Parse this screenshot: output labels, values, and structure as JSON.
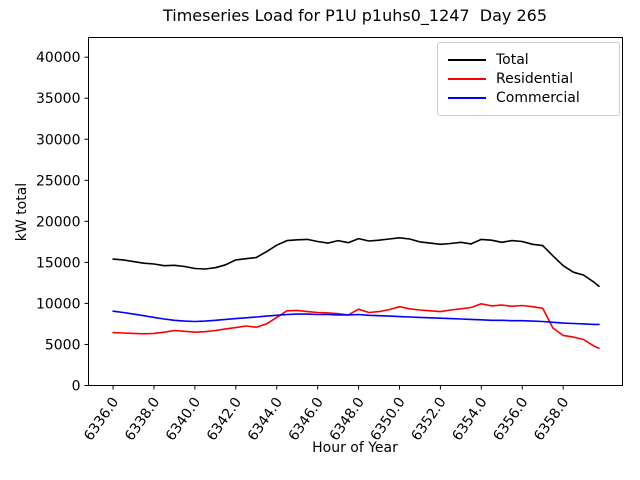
{
  "figure": {
    "title": "Timeseries Load for P1U p1uhs0_1247  Day 265",
    "xlabel": "Hour of Year",
    "ylabel": "kW total"
  },
  "legend": {
    "entries": [
      {
        "label": "Total",
        "color": "#000000"
      },
      {
        "label": "Residential",
        "color": "#ff0000"
      },
      {
        "label": "Commercial",
        "color": "#0000ff"
      }
    ]
  },
  "chart_data": {
    "type": "line",
    "title": "Timeseries Load for P1U p1uhs0_1247  Day 265",
    "xlabel": "Hour of Year",
    "ylabel": "kW total",
    "grid": false,
    "legend_position": "upper right",
    "xlim": [
      6334.8,
      6360.9
    ],
    "ylim": [
      0,
      42400
    ],
    "xticks": {
      "values": [
        6336,
        6338,
        6340,
        6342,
        6344,
        6346,
        6348,
        6350,
        6352,
        6354,
        6356,
        6358
      ],
      "labels": [
        "6336.0",
        "6338.0",
        "6340.0",
        "6342.0",
        "6344.0",
        "6346.0",
        "6348.0",
        "6350.0",
        "6352.0",
        "6354.0",
        "6356.0",
        "6358.0"
      ]
    },
    "yticks": {
      "values": [
        0,
        5000,
        10000,
        15000,
        20000,
        25000,
        30000,
        35000,
        40000
      ],
      "labels": [
        "0",
        "5000",
        "10000",
        "15000",
        "20000",
        "25000",
        "30000",
        "35000",
        "40000"
      ]
    },
    "x": [
      6336.0,
      6336.5,
      6337.0,
      6337.5,
      6338.0,
      6338.5,
      6339.0,
      6339.5,
      6340.0,
      6340.5,
      6341.0,
      6341.5,
      6342.0,
      6342.5,
      6343.0,
      6343.5,
      6344.0,
      6344.5,
      6345.0,
      6345.5,
      6346.0,
      6346.5,
      6347.0,
      6347.5,
      6348.0,
      6348.5,
      6349.0,
      6349.5,
      6350.0,
      6350.5,
      6351.0,
      6351.5,
      6352.0,
      6352.5,
      6353.0,
      6353.5,
      6354.0,
      6354.5,
      6355.0,
      6355.5,
      6356.0,
      6356.5,
      6357.0,
      6357.5,
      6358.0,
      6358.5,
      6359.0,
      6359.5,
      6359.75
    ],
    "series": [
      {
        "name": "Total",
        "color": "#000000",
        "values": [
          15400,
          15300,
          15100,
          14900,
          14800,
          14600,
          14650,
          14500,
          14250,
          14200,
          14350,
          14700,
          15300,
          15450,
          15600,
          16300,
          17100,
          17650,
          17750,
          17800,
          17550,
          17350,
          17650,
          17400,
          17900,
          17600,
          17700,
          17850,
          18000,
          17850,
          17500,
          17350,
          17200,
          17300,
          17450,
          17250,
          17800,
          17700,
          17450,
          17650,
          17550,
          17200,
          17050,
          15800,
          14600,
          13800,
          13450,
          12600,
          12100
        ]
      },
      {
        "name": "Residential",
        "color": "#ff0000",
        "values": [
          6450,
          6400,
          6350,
          6300,
          6350,
          6500,
          6700,
          6600,
          6500,
          6550,
          6700,
          6900,
          7050,
          7250,
          7100,
          7500,
          8300,
          9100,
          9150,
          9000,
          8900,
          8850,
          8750,
          8600,
          9300,
          8900,
          9000,
          9250,
          9600,
          9350,
          9200,
          9100,
          9000,
          9200,
          9350,
          9500,
          9950,
          9700,
          9800,
          9650,
          9750,
          9600,
          9400,
          7000,
          6100,
          5900,
          5600,
          4800,
          4550
        ]
      },
      {
        "name": "Commercial",
        "color": "#0000ff",
        "values": [
          9050,
          8900,
          8700,
          8500,
          8300,
          8100,
          7950,
          7850,
          7800,
          7850,
          7950,
          8050,
          8150,
          8250,
          8350,
          8450,
          8550,
          8650,
          8700,
          8700,
          8650,
          8650,
          8600,
          8600,
          8650,
          8550,
          8500,
          8450,
          8400,
          8350,
          8300,
          8250,
          8200,
          8150,
          8100,
          8050,
          8000,
          7950,
          7950,
          7900,
          7900,
          7850,
          7800,
          7700,
          7600,
          7550,
          7500,
          7450,
          7450
        ]
      }
    ]
  }
}
